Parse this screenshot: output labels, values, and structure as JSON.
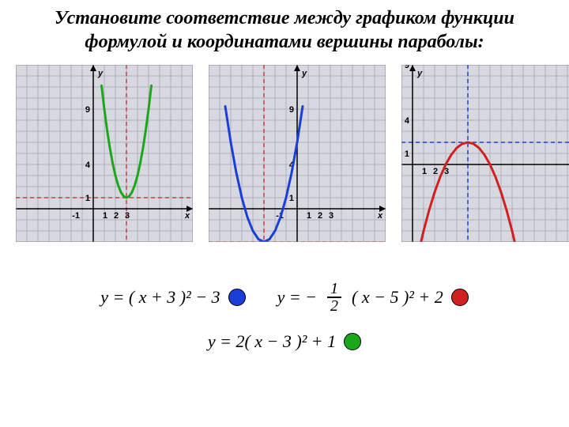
{
  "title_line1": "Установите соответствие между графиком функции",
  "title_line2": "формулой и координатами вершины параболы:",
  "grid": {
    "cell": 14,
    "width_cells": 16,
    "height_cells": 16,
    "bg_color": "#d8d8e0",
    "grid_color": "#b0b0b8",
    "axis_color": "#000000",
    "tick_labels_x": [
      "-1",
      "1",
      "2",
      "3"
    ],
    "tick_labels_y": [
      "1",
      "4",
      "9"
    ],
    "axis_label_x": "x",
    "axis_label_y": "y"
  },
  "charts": [
    {
      "curve_color": "#1aa81a",
      "dash_color": "#c04040",
      "origin_col": 7,
      "origin_row": 13,
      "a": 2.0,
      "h": 3,
      "k": 1,
      "opens": "up",
      "x_values": [
        0.75,
        1,
        1.25,
        1.5,
        1.75,
        2,
        2.25,
        2.5,
        2.75,
        3,
        3.25,
        3.5,
        3.75,
        4,
        4.25,
        4.5,
        4.75,
        5,
        5.25
      ]
    },
    {
      "curve_color": "#1a3fd8",
      "dash_color": "#c04040",
      "origin_col": 8,
      "origin_row": 13,
      "a": 1.0,
      "h": -3,
      "k": -3,
      "opens": "up",
      "x_values": [
        -6.5,
        -6,
        -5.5,
        -5,
        -4.5,
        -4,
        -3.5,
        -3,
        -2.5,
        -2,
        -1.5,
        -1,
        -0.5,
        0,
        0.5
      ]
    },
    {
      "curve_color": "#d02020",
      "dash_color": "#1a3fd8",
      "origin_col": 1,
      "origin_row": 9,
      "a": -0.5,
      "h": 5,
      "k": 2,
      "opens": "down",
      "x_values": [
        0.5,
        1,
        1.5,
        2,
        2.5,
        3,
        3.5,
        4,
        4.5,
        5,
        5.5,
        6,
        6.5,
        7,
        7.5,
        8,
        8.5,
        9,
        9.5
      ]
    }
  ],
  "formulas": {
    "f1": {
      "text": "y = ( x + 3 )² − 3",
      "color": "#1a3fd8"
    },
    "f2": {
      "text_before": "y = −",
      "text_after": "( x − 5 )² + 2",
      "num": "1",
      "den": "2",
      "color": "#d02020"
    },
    "f3": {
      "text": "y = 2( x − 3 )² + 1",
      "color": "#1aa81a"
    }
  }
}
